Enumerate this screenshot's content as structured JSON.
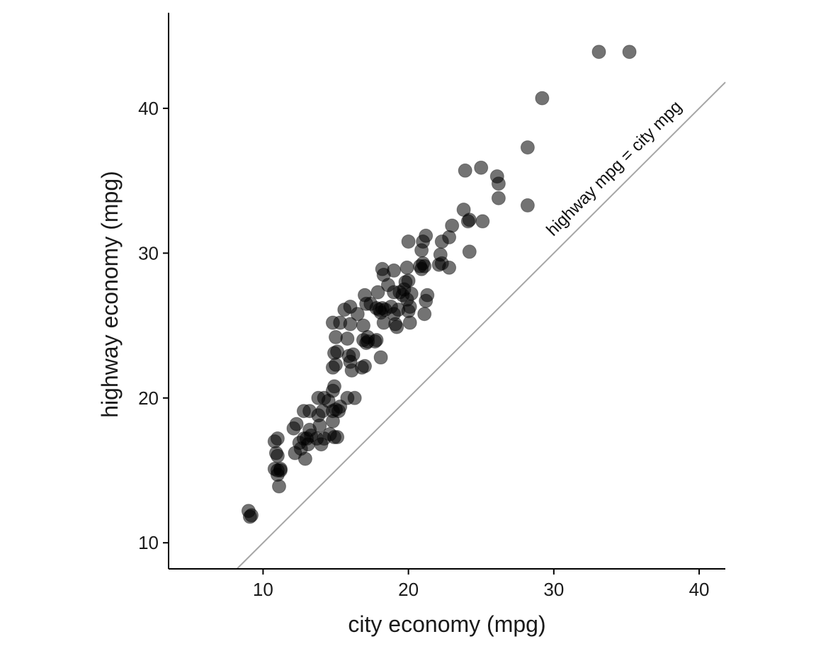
{
  "chart_data": {
    "type": "scatter",
    "title": "",
    "xlabel": "city economy (mpg)",
    "ylabel": "highway economy (mpg)",
    "xlim": [
      3.5,
      41.8
    ],
    "ylim": [
      8.2,
      46.6
    ],
    "x_ticks": [
      10,
      20,
      30,
      40
    ],
    "y_ticks": [
      10,
      20,
      30,
      40
    ],
    "x_tick_labels": [
      "10",
      "20",
      "30",
      "40"
    ],
    "y_tick_labels": [
      "10",
      "20",
      "30",
      "40"
    ],
    "grid": false,
    "legend": "none",
    "point_color": "#000000",
    "point_opacity": 0.55,
    "reference_line": {
      "slope": 1,
      "intercept": 0,
      "label": "highway mpg = city mpg",
      "color": "#a6a6a6"
    },
    "points": [
      [
        9,
        12.2
      ],
      [
        9.1,
        11.8
      ],
      [
        9.2,
        11.9
      ],
      [
        10.8,
        17
      ],
      [
        10.8,
        15.1
      ],
      [
        11,
        17.2
      ],
      [
        11,
        16
      ],
      [
        11,
        15
      ],
      [
        11.2,
        15.1
      ],
      [
        11,
        14.7
      ],
      [
        11.2,
        15
      ],
      [
        11.1,
        13.9
      ],
      [
        10.9,
        16.2
      ],
      [
        12.1,
        17.9
      ],
      [
        12.3,
        18.2
      ],
      [
        12.2,
        16.2
      ],
      [
        12.6,
        16.5
      ],
      [
        12.5,
        16.9
      ],
      [
        12.8,
        17.2
      ],
      [
        12.9,
        15.8
      ],
      [
        12.8,
        19.1
      ],
      [
        13,
        17.2
      ],
      [
        13.2,
        19.1
      ],
      [
        13.1,
        16.8
      ],
      [
        13.2,
        17.8
      ],
      [
        13.3,
        17.4
      ],
      [
        13.7,
        17.2
      ],
      [
        13.8,
        18.8
      ],
      [
        13.8,
        20
      ],
      [
        13.9,
        18.1
      ],
      [
        14,
        16.8
      ],
      [
        14.1,
        19.1
      ],
      [
        14.2,
        17.2
      ],
      [
        14.2,
        20
      ],
      [
        14.5,
        19.8
      ],
      [
        14.6,
        17.5
      ],
      [
        14.8,
        20.5
      ],
      [
        14.8,
        18.4
      ],
      [
        14.8,
        19.1
      ],
      [
        14.9,
        20.8
      ],
      [
        14.9,
        17.3
      ],
      [
        15,
        19.2
      ],
      [
        15.1,
        17.3
      ],
      [
        15.2,
        19.1
      ],
      [
        15.3,
        19.4
      ],
      [
        14.8,
        25.2
      ],
      [
        14.9,
        23.1
      ],
      [
        14.8,
        22.1
      ],
      [
        15,
        24.2
      ],
      [
        15,
        22.3
      ],
      [
        15.1,
        23.2
      ],
      [
        15.3,
        25.2
      ],
      [
        15.8,
        20
      ],
      [
        15.6,
        26.1
      ],
      [
        15.8,
        24.1
      ],
      [
        15.9,
        22.9
      ],
      [
        16,
        22.5
      ],
      [
        16,
        26.3
      ],
      [
        16.1,
        21.9
      ],
      [
        16.2,
        23
      ],
      [
        16,
        25.1
      ],
      [
        16.3,
        20
      ],
      [
        16.5,
        25.8
      ],
      [
        16.8,
        22.1
      ],
      [
        17,
        22.2
      ],
      [
        17.1,
        23.8
      ],
      [
        17.2,
        24.2
      ],
      [
        17.2,
        23.9
      ],
      [
        16.9,
        24
      ],
      [
        17,
        27.1
      ],
      [
        17.1,
        26.5
      ],
      [
        17.4,
        26.5
      ],
      [
        16.9,
        25
      ],
      [
        17.7,
        23.9
      ],
      [
        17.8,
        24
      ],
      [
        17.8,
        26.2
      ],
      [
        17.9,
        27.3
      ],
      [
        18,
        26.1
      ],
      [
        18.1,
        25.9
      ],
      [
        18.2,
        26.2
      ],
      [
        18.1,
        22.8
      ],
      [
        18.3,
        25.2
      ],
      [
        18.4,
        26.1
      ],
      [
        18.2,
        28.9
      ],
      [
        18.3,
        28.5
      ],
      [
        18.6,
        27.8
      ],
      [
        18.8,
        26.3
      ],
      [
        19,
        28.8
      ],
      [
        19,
        27.3
      ],
      [
        19.1,
        25.1
      ],
      [
        19.2,
        24.9
      ],
      [
        19,
        25.8
      ],
      [
        19.3,
        26.1
      ],
      [
        19.4,
        27.3
      ],
      [
        19.6,
        27.1
      ],
      [
        19.7,
        27.5
      ],
      [
        19.8,
        28
      ],
      [
        19.9,
        26.8
      ],
      [
        20,
        28.1
      ],
      [
        20.1,
        26.3
      ],
      [
        19.9,
        29
      ],
      [
        20,
        30.8
      ],
      [
        20,
        26
      ],
      [
        20.2,
        27.2
      ],
      [
        20.1,
        25.2
      ],
      [
        20.8,
        29.1
      ],
      [
        20.9,
        28.9
      ],
      [
        21,
        29.3
      ],
      [
        20.9,
        30.2
      ],
      [
        21,
        30.8
      ],
      [
        21.1,
        29.1
      ],
      [
        21.2,
        31.2
      ],
      [
        21.3,
        27.1
      ],
      [
        21.2,
        26.7
      ],
      [
        21.1,
        25.8
      ],
      [
        22.1,
        29.2
      ],
      [
        22.2,
        29.9
      ],
      [
        22.3,
        29.3
      ],
      [
        22.3,
        30.8
      ],
      [
        22.8,
        29
      ],
      [
        22.8,
        31.1
      ],
      [
        23,
        31.9
      ],
      [
        23.8,
        33
      ],
      [
        24.1,
        32.2
      ],
      [
        24.2,
        32.3
      ],
      [
        24.2,
        30.1
      ],
      [
        25.1,
        32.2
      ],
      [
        23.9,
        35.7
      ],
      [
        25,
        35.9
      ],
      [
        26.1,
        35.3
      ],
      [
        26.2,
        34.8
      ],
      [
        26.2,
        33.8
      ],
      [
        28.2,
        37.3
      ],
      [
        28.2,
        33.3
      ],
      [
        29.2,
        40.7
      ],
      [
        33.1,
        43.9
      ],
      [
        35.2,
        43.9
      ]
    ]
  }
}
